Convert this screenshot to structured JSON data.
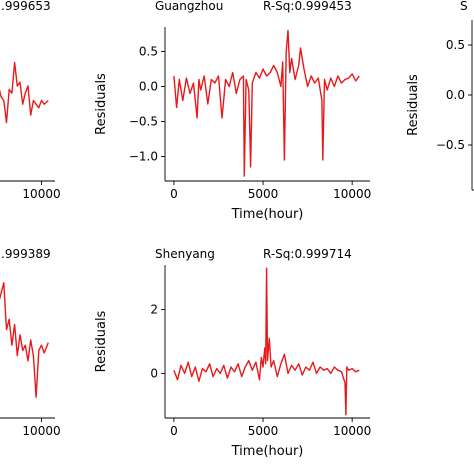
{
  "chart_data": [
    {
      "type": "line",
      "position": "top-left (cropped)",
      "title": "",
      "rsq_label": ".999653",
      "ylabel": "",
      "xlabel": "",
      "xticks": [
        {
          "value": 10000,
          "label": "10000"
        }
      ],
      "yticks": [],
      "xlim": [
        -500,
        11000
      ],
      "ylim": [
        -1.4,
        0.8
      ],
      "series": [
        {
          "color": "#e8191b",
          "points": [
            [
              0,
              0.05
            ],
            [
              800,
              -0.05
            ],
            [
              1600,
              0.12
            ],
            [
              2400,
              0.02
            ],
            [
              3200,
              0.08
            ],
            [
              4000,
              -0.03
            ],
            [
              4800,
              0.1
            ],
            [
              5200,
              0.0
            ],
            [
              5600,
              0.25
            ],
            [
              6000,
              0.15
            ],
            [
              6400,
              0.1
            ],
            [
              6600,
              0.05
            ],
            [
              7000,
              -0.25
            ],
            [
              7200,
              -0.3
            ],
            [
              7400,
              -0.6
            ],
            [
              7600,
              -0.15
            ],
            [
              7800,
              -0.2
            ],
            [
              8000,
              0.22
            ],
            [
              8200,
              -0.1
            ],
            [
              8400,
              -0.05
            ],
            [
              8600,
              -0.35
            ],
            [
              8800,
              -0.2
            ],
            [
              9000,
              -0.1
            ],
            [
              9200,
              -0.5
            ],
            [
              9400,
              -0.3
            ],
            [
              9600,
              -0.35
            ],
            [
              9800,
              -0.4
            ],
            [
              10000,
              -0.3
            ],
            [
              10200,
              -0.35
            ],
            [
              10500,
              -0.3
            ]
          ]
        }
      ]
    },
    {
      "type": "line",
      "position": "top-center",
      "title": "Guangzhou",
      "rsq_label": "R-Sq:0.999453",
      "ylabel": "Residuals",
      "xlabel": "Time(hour)",
      "xticks": [
        {
          "value": 0,
          "label": "0"
        },
        {
          "value": 5000,
          "label": "5000"
        },
        {
          "value": 10000,
          "label": "10000"
        }
      ],
      "yticks": [
        {
          "value": 0.5,
          "label": "0.5"
        },
        {
          "value": 0.0,
          "label": "0.0"
        },
        {
          "value": -0.5,
          "label": "−0.5"
        },
        {
          "value": -1.0,
          "label": "−1.0"
        }
      ],
      "xlim": [
        -500,
        11000
      ],
      "ylim": [
        -1.35,
        0.85
      ],
      "series": [
        {
          "color": "#e8191b",
          "points": [
            [
              0,
              0.15
            ],
            [
              150,
              -0.3
            ],
            [
              300,
              0.1
            ],
            [
              500,
              -0.2
            ],
            [
              700,
              0.12
            ],
            [
              900,
              -0.1
            ],
            [
              1100,
              0.05
            ],
            [
              1300,
              -0.45
            ],
            [
              1400,
              0.1
            ],
            [
              1500,
              -0.05
            ],
            [
              1700,
              0.15
            ],
            [
              1900,
              -0.25
            ],
            [
              2100,
              0.1
            ],
            [
              2300,
              0.05
            ],
            [
              2500,
              0.15
            ],
            [
              2700,
              -0.45
            ],
            [
              2900,
              0.1
            ],
            [
              3100,
              0.0
            ],
            [
              3300,
              0.2
            ],
            [
              3500,
              -0.1
            ],
            [
              3700,
              0.1
            ],
            [
              3900,
              0.15
            ],
            [
              3950,
              -1.28
            ],
            [
              4050,
              0.1
            ],
            [
              4200,
              -0.05
            ],
            [
              4300,
              -1.15
            ],
            [
              4400,
              0.05
            ],
            [
              4600,
              0.2
            ],
            [
              4800,
              0.12
            ],
            [
              5000,
              0.25
            ],
            [
              5200,
              0.15
            ],
            [
              5400,
              0.2
            ],
            [
              5600,
              0.3
            ],
            [
              5800,
              0.2
            ],
            [
              6000,
              0.0
            ],
            [
              6100,
              0.35
            ],
            [
              6200,
              -1.05
            ],
            [
              6300,
              0.5
            ],
            [
              6400,
              0.8
            ],
            [
              6500,
              0.2
            ],
            [
              6600,
              0.4
            ],
            [
              6800,
              0.1
            ],
            [
              7000,
              0.3
            ],
            [
              7100,
              0.55
            ],
            [
              7300,
              0.25
            ],
            [
              7500,
              0.0
            ],
            [
              7700,
              0.15
            ],
            [
              7900,
              0.05
            ],
            [
              8100,
              0.12
            ],
            [
              8300,
              -0.2
            ],
            [
              8350,
              -1.05
            ],
            [
              8450,
              0.1
            ],
            [
              8600,
              -0.05
            ],
            [
              8800,
              0.12
            ],
            [
              9000,
              0.0
            ],
            [
              9200,
              0.15
            ],
            [
              9400,
              0.05
            ],
            [
              9600,
              0.1
            ],
            [
              9800,
              0.12
            ],
            [
              10000,
              0.18
            ],
            [
              10200,
              0.08
            ],
            [
              10400,
              0.15
            ]
          ]
        }
      ]
    },
    {
      "type": "line",
      "position": "top-right (cropped)",
      "title": "S",
      "rsq_label": "",
      "ylabel": "Residuals",
      "xlabel": "",
      "xticks": [],
      "yticks": [
        {
          "value": 0.5,
          "label": "0.5"
        },
        {
          "value": 0.0,
          "label": "0.0"
        },
        {
          "value": -0.5,
          "label": "−0.5"
        }
      ],
      "xlim": [
        -500,
        11000
      ],
      "ylim": [
        -0.95,
        0.75
      ],
      "series": []
    },
    {
      "type": "line",
      "position": "bottom-left (cropped)",
      "title": "",
      "rsq_label": ".999389",
      "ylabel": "",
      "xlabel": "",
      "xticks": [
        {
          "value": 10000,
          "label": "10000"
        }
      ],
      "yticks": [],
      "xlim": [
        -500,
        11000
      ],
      "ylim": [
        -1.5,
        1.5
      ],
      "series": [
        {
          "color": "#e8191b",
          "points": [
            [
              6000,
              0.6
            ],
            [
              6200,
              -0.2
            ],
            [
              6400,
              0.3
            ],
            [
              6600,
              0.1
            ],
            [
              6800,
              0.7
            ],
            [
              7000,
              0.9
            ],
            [
              7200,
              1.1
            ],
            [
              7400,
              0.2
            ],
            [
              7600,
              0.4
            ],
            [
              7800,
              -0.1
            ],
            [
              8000,
              0.3
            ],
            [
              8200,
              -0.3
            ],
            [
              8400,
              0.1
            ],
            [
              8600,
              -0.2
            ],
            [
              8800,
              -0.1
            ],
            [
              9000,
              -0.4
            ],
            [
              9200,
              0.0
            ],
            [
              9400,
              -0.3
            ],
            [
              9600,
              -1.1
            ],
            [
              9800,
              -0.2
            ],
            [
              10000,
              -0.1
            ],
            [
              10200,
              -0.25
            ],
            [
              10500,
              -0.05
            ]
          ]
        }
      ]
    },
    {
      "type": "line",
      "position": "bottom-center",
      "title": "Shenyang",
      "rsq_label": "R-Sq:0.999714",
      "ylabel": "Residuals",
      "xlabel": "Time(hour)",
      "xticks": [
        {
          "value": 0,
          "label": "0"
        },
        {
          "value": 5000,
          "label": "5000"
        },
        {
          "value": 10000,
          "label": "10000"
        }
      ],
      "yticks": [
        {
          "value": 2,
          "label": "2"
        },
        {
          "value": 0,
          "label": "0"
        }
      ],
      "xlim": [
        -500,
        11000
      ],
      "ylim": [
        -1.4,
        3.4
      ],
      "series": [
        {
          "color": "#e8191b",
          "points": [
            [
              0,
              0.1
            ],
            [
              200,
              -0.2
            ],
            [
              400,
              0.25
            ],
            [
              600,
              0.0
            ],
            [
              800,
              0.35
            ],
            [
              1000,
              -0.1
            ],
            [
              1200,
              0.2
            ],
            [
              1400,
              -0.25
            ],
            [
              1600,
              0.15
            ],
            [
              1800,
              0.05
            ],
            [
              2000,
              0.3
            ],
            [
              2200,
              -0.1
            ],
            [
              2400,
              0.15
            ],
            [
              2600,
              0.0
            ],
            [
              2800,
              0.25
            ],
            [
              3000,
              -0.15
            ],
            [
              3200,
              0.2
            ],
            [
              3400,
              0.05
            ],
            [
              3600,
              0.3
            ],
            [
              3800,
              -0.1
            ],
            [
              4000,
              0.2
            ],
            [
              4200,
              0.4
            ],
            [
              4400,
              0.1
            ],
            [
              4600,
              0.35
            ],
            [
              4800,
              -0.2
            ],
            [
              4900,
              0.5
            ],
            [
              5000,
              0.2
            ],
            [
              5100,
              0.8
            ],
            [
              5150,
              0.3
            ],
            [
              5200,
              3.3
            ],
            [
              5250,
              0.4
            ],
            [
              5350,
              1.1
            ],
            [
              5450,
              0.2
            ],
            [
              5600,
              0.4
            ],
            [
              5800,
              -0.1
            ],
            [
              6000,
              0.3
            ],
            [
              6200,
              0.6
            ],
            [
              6400,
              0.0
            ],
            [
              6600,
              0.25
            ],
            [
              6800,
              0.1
            ],
            [
              7000,
              0.3
            ],
            [
              7200,
              -0.05
            ],
            [
              7400,
              0.2
            ],
            [
              7600,
              0.1
            ],
            [
              7800,
              0.35
            ],
            [
              8000,
              0.0
            ],
            [
              8200,
              0.2
            ],
            [
              8400,
              0.1
            ],
            [
              8600,
              0.15
            ],
            [
              8800,
              0.0
            ],
            [
              9000,
              0.2
            ],
            [
              9200,
              0.1
            ],
            [
              9400,
              0.05
            ],
            [
              9600,
              -0.3
            ],
            [
              9650,
              -1.3
            ],
            [
              9700,
              0.2
            ],
            [
              9800,
              0.1
            ],
            [
              10000,
              0.15
            ],
            [
              10200,
              0.05
            ],
            [
              10400,
              0.1
            ]
          ]
        }
      ]
    }
  ]
}
